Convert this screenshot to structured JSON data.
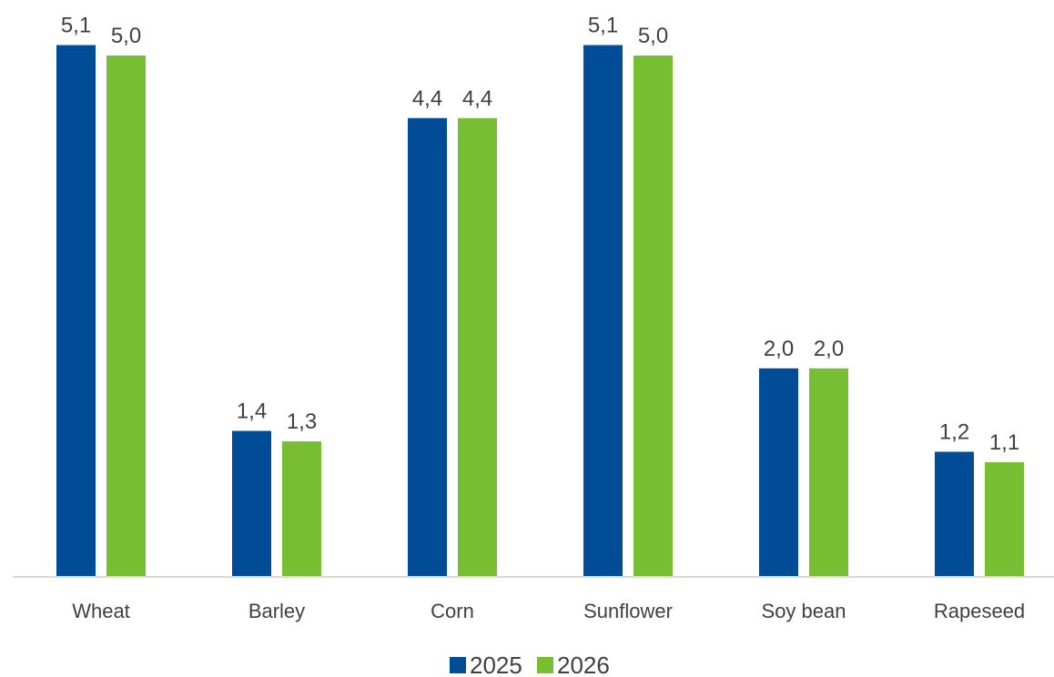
{
  "chart_data": {
    "type": "bar",
    "categories": [
      "Wheat",
      "Barley",
      "Corn",
      "Sunflower",
      "Soy bean",
      "Rapeseed"
    ],
    "series": [
      {
        "name": "2025",
        "values": [
          5.1,
          1.4,
          4.4,
          5.1,
          2.0,
          1.2
        ],
        "labels": [
          "5,1",
          "1,4",
          "4,4",
          "5,1",
          "2,0",
          "1,2"
        ],
        "color": "#004C97"
      },
      {
        "name": "2026",
        "values": [
          5.0,
          1.3,
          4.4,
          5.0,
          2.0,
          1.1
        ],
        "labels": [
          "5,0",
          "1,3",
          "4,4",
          "5,0",
          "2,0",
          "1,1"
        ],
        "color": "#78BE32"
      }
    ],
    "title": "",
    "xlabel": "",
    "ylabel": "",
    "ylim": [
      0,
      5.5
    ],
    "grid": false,
    "legend": "bottom",
    "axis_color": "#D9D9D9"
  }
}
